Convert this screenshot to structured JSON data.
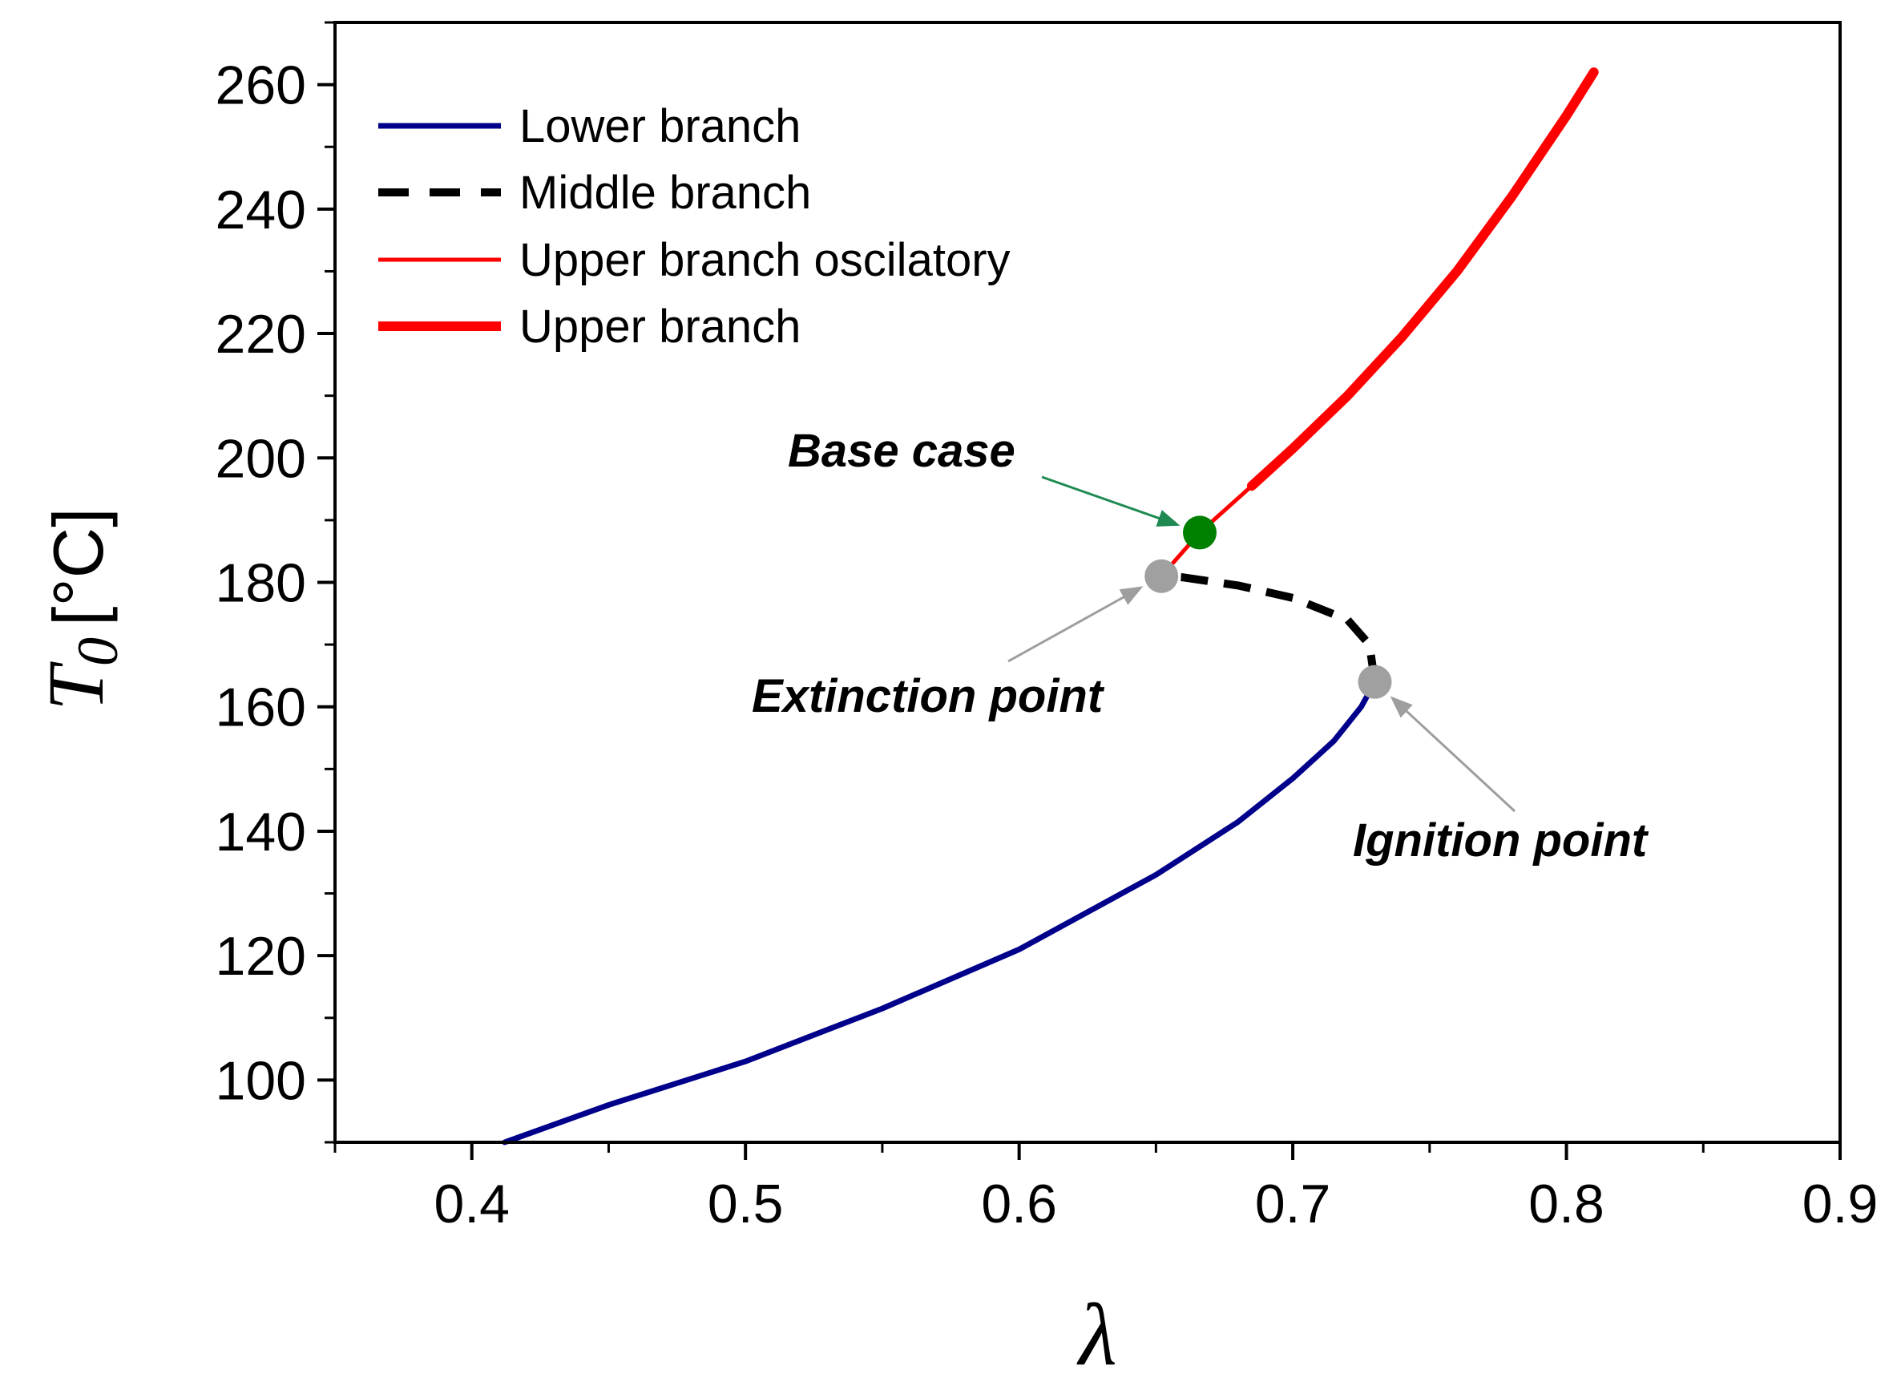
{
  "chart_data": {
    "type": "line",
    "xlabel": "λ",
    "ylabel": {
      "symbol": "T",
      "subscript": "0",
      "unit": "[°C]"
    },
    "xlim": [
      0.35,
      0.9
    ],
    "ylim": [
      90,
      270
    ],
    "xticks": [
      0.4,
      0.5,
      0.6,
      0.7,
      0.8,
      0.9
    ],
    "xtick_labels": [
      "0.4",
      "0.5",
      "0.6",
      "0.7",
      "0.8",
      "0.9"
    ],
    "yticks": [
      100,
      120,
      140,
      160,
      180,
      200,
      220,
      240,
      260
    ],
    "ytick_labels": [
      "100",
      "120",
      "140",
      "160",
      "180",
      "200",
      "220",
      "240",
      "260"
    ],
    "legend_position": "top-left",
    "series": [
      {
        "name": "Lower branch",
        "color": "#00008b",
        "style": "solid",
        "x": [
          0.412,
          0.45,
          0.5,
          0.55,
          0.6,
          0.65,
          0.68,
          0.7,
          0.715,
          0.725,
          0.73
        ],
        "y": [
          90,
          96,
          103,
          111.5,
          121,
          133,
          141.5,
          148.5,
          154.5,
          160,
          164
        ]
      },
      {
        "name": "Middle branch",
        "color": "#000000",
        "style": "dashed",
        "x": [
          0.73,
          0.728,
          0.72,
          0.7,
          0.68,
          0.66,
          0.652
        ],
        "y": [
          164,
          170,
          174,
          177.5,
          179.5,
          180.8,
          181
        ]
      },
      {
        "name": "Upper branch oscilatory",
        "color": "#ff0000",
        "style": "thin",
        "x": [
          0.652,
          0.666,
          0.685
        ],
        "y": [
          181,
          188,
          195.5
        ]
      },
      {
        "name": "Upper branch",
        "color": "#ff0000",
        "style": "thick",
        "x": [
          0.685,
          0.7,
          0.72,
          0.74,
          0.76,
          0.78,
          0.8,
          0.81
        ],
        "y": [
          195.5,
          201.5,
          210,
          219.5,
          230,
          242,
          255,
          262
        ]
      }
    ],
    "points": [
      {
        "label": "Base case",
        "x": 0.666,
        "y": 188,
        "color": "#008000"
      },
      {
        "label": "Extinction point",
        "x": 0.652,
        "y": 181,
        "color": "#a0a0a0"
      },
      {
        "label": "Ignition point",
        "x": 0.73,
        "y": 164,
        "color": "#a0a0a0"
      }
    ]
  }
}
